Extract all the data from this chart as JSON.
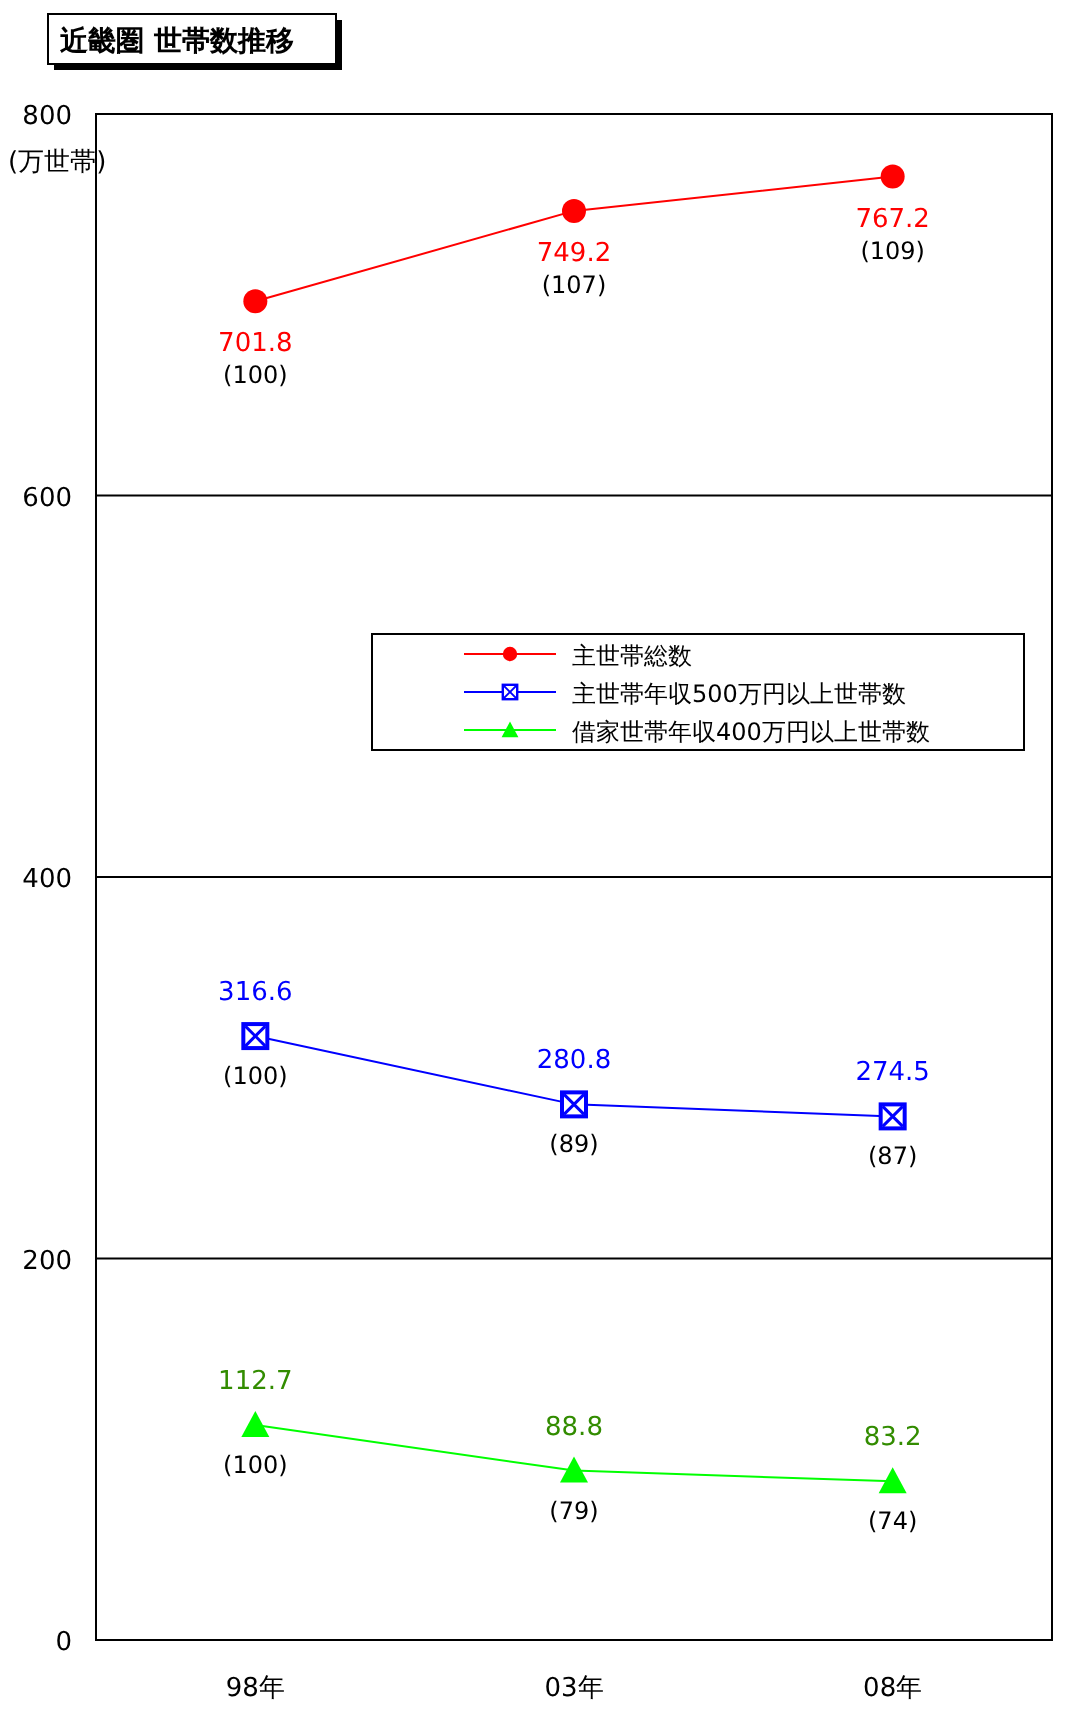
{
  "chart_data": {
    "type": "line",
    "title": "近畿圏 世帯数推移",
    "ylabel": "(万世帯)",
    "categories": [
      "98年",
      "03年",
      "08年"
    ],
    "series": [
      {
        "name": "主世帯総数",
        "color": "#ff0000",
        "marker": "circle",
        "values": [
          701.8,
          749.2,
          767.2
        ]
      },
      {
        "name": "主世帯年収500万円以上世帯数",
        "color": "#0000ff",
        "marker": "square",
        "values": [
          316.6,
          280.8,
          274.5
        ]
      },
      {
        "name": "借家世帯年収400万円以上世帯数",
        "color": "#00ff00",
        "marker": "triangle",
        "values": [
          112.7,
          88.8,
          83.2
        ]
      }
    ],
    "ylim": [
      0,
      800
    ],
    "yticks": [
      0,
      200,
      400,
      600,
      800
    ],
    "grid": "y",
    "legend": "right",
    "data_labels": true,
    "annotations": [
      {
        "text": "(100)",
        "x": "98年",
        "y": 701.8
      },
      {
        "text": "(107)",
        "x": "03年",
        "y": 749.2
      },
      {
        "text": "(109)",
        "x": "08年",
        "y": 767.2
      },
      {
        "text": "(100)",
        "x": "98年",
        "y": 316.6
      },
      {
        "text": "(89)",
        "x": "03年",
        "y": 280.8
      },
      {
        "text": "(87)",
        "x": "08年",
        "y": 274.5
      },
      {
        "text": "(100)",
        "x": "98年",
        "y": 112.7
      },
      {
        "text": "(79)",
        "x": "03年",
        "y": 88.8
      },
      {
        "text": "(74)",
        "x": "08年",
        "y": 83.2
      }
    ]
  }
}
